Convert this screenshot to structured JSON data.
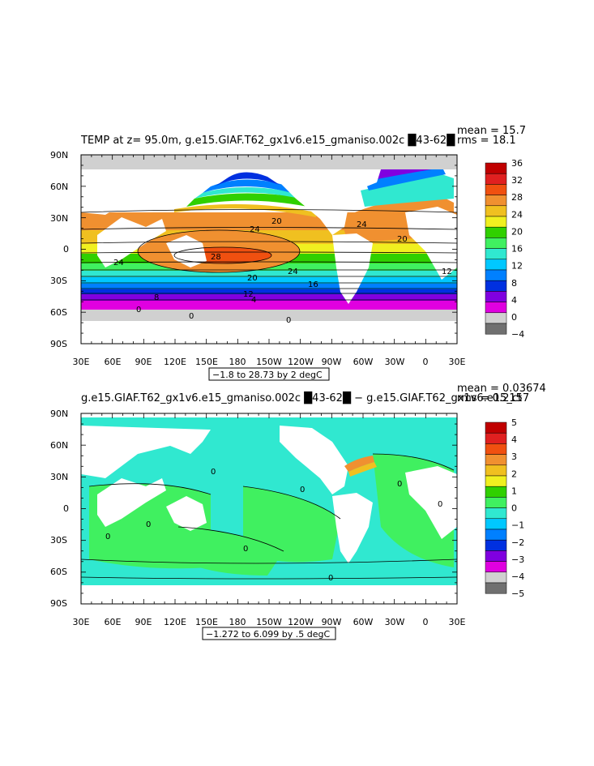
{
  "panel_top": {
    "title": "TEMP at z=  95.0m, g.e15.GIAF.T62_gx1v6.e15_gmaniso.002c █43-62█",
    "mean_label": "mean = 15.7",
    "rms_label": "rms = 18.1",
    "range_label": "−1.8 to 28.73 by 2 degC",
    "lat_ticks": [
      "90N",
      "60N",
      "30N",
      "0",
      "30S",
      "60S",
      "90S"
    ],
    "lon_ticks": [
      "30E",
      "60E",
      "90E",
      "120E",
      "150E",
      "180",
      "150W",
      "120W",
      "90W",
      "60W",
      "30W",
      "0",
      "30E"
    ],
    "colorbar_labels": [
      "36",
      "32",
      "28",
      "24",
      "20",
      "16",
      "12",
      "8",
      "4",
      "0",
      "−4"
    ],
    "colorbar_colors": [
      "#c00000",
      "#e02020",
      "#f05010",
      "#f09030",
      "#f0c020",
      "#f0f020",
      "#30d000",
      "#40f060",
      "#30e8d0",
      "#00c8ff",
      "#0080ff",
      "#0030e0",
      "#8000e0",
      "#e000e0",
      "#d0d0d0",
      "#707070"
    ],
    "contour_labels": [
      "24",
      "24",
      "28",
      "20",
      "24",
      "20",
      "16",
      "20",
      "24",
      "12",
      "8",
      "4",
      "0",
      "0",
      "0",
      "12"
    ]
  },
  "panel_bottom": {
    "title": "g.e15.GIAF.T62_gx1v6.e15_gmaniso.002c █43-62█ − g.e15.GIAF.T62_gx1v6.e15_ct",
    "mean_label": "mean = 0.03674",
    "rms_label": "rms = 0.2157",
    "range_label": "−1.272 to 6.099 by .5 degC",
    "lat_ticks": [
      "90N",
      "60N",
      "30N",
      "0",
      "30S",
      "60S",
      "90S"
    ],
    "lon_ticks": [
      "30E",
      "60E",
      "90E",
      "120E",
      "150E",
      "180",
      "150W",
      "120W",
      "90W",
      "60W",
      "30W",
      "0",
      "30E"
    ],
    "colorbar_labels": [
      "5",
      "4",
      "3",
      "2",
      "1",
      "0",
      "−1",
      "−2",
      "−3",
      "−4",
      "−5"
    ],
    "colorbar_colors": [
      "#c00000",
      "#e02020",
      "#f05010",
      "#f09030",
      "#f0c020",
      "#f0f020",
      "#30d000",
      "#40f060",
      "#30e8d0",
      "#00c8ff",
      "#0080ff",
      "#0030e0",
      "#8000e0",
      "#e000e0",
      "#d0d0d0",
      "#707070"
    ],
    "contour_labels": [
      "0",
      "0",
      "0",
      "0",
      "0",
      "0",
      "0",
      "0"
    ]
  }
}
